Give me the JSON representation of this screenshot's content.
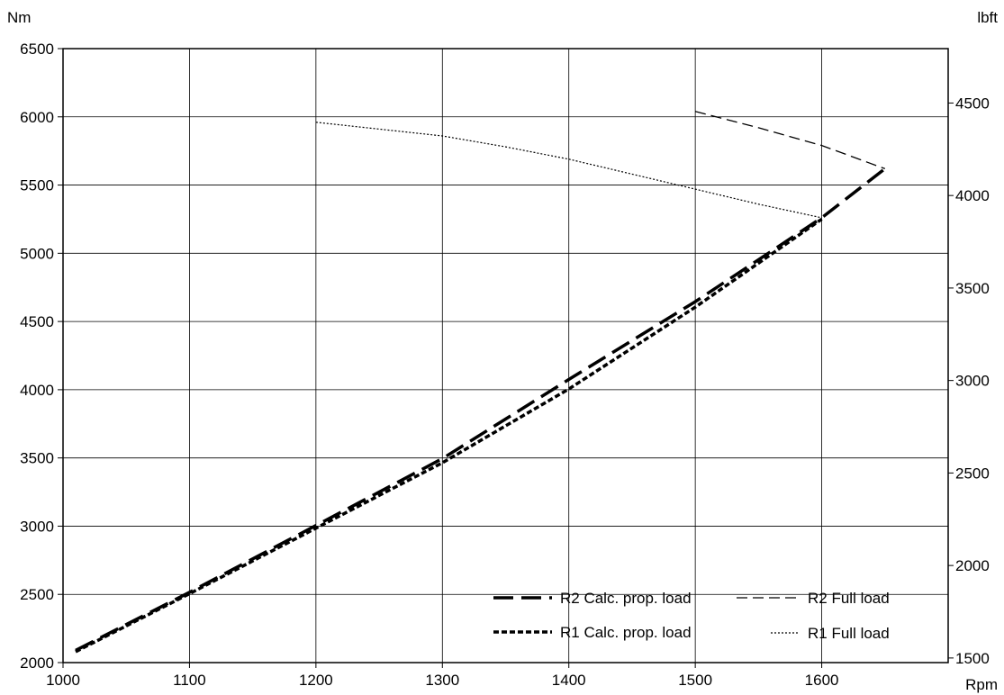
{
  "chart_data": {
    "type": "line",
    "xlabel": "Rpm",
    "ylabel_left": "Nm",
    "ylabel_right": "lbft",
    "xlim": [
      1000,
      1700
    ],
    "ylim_left": [
      2000,
      6500
    ],
    "ylim_right": [
      1475.1,
      4794.1
    ],
    "grid": true,
    "legend_position": "bottom-right",
    "x_ticks": [
      1000,
      1100,
      1200,
      1300,
      1400,
      1500,
      1600
    ],
    "y_ticks_left": [
      2000,
      2500,
      3000,
      3500,
      4000,
      4500,
      5000,
      5500,
      6000,
      6500
    ],
    "y_ticks_right": [
      1500,
      2000,
      2500,
      3000,
      3500,
      4000,
      4500
    ],
    "series": [
      {
        "name": "R2 Calc. prop. load",
        "style": "long-dash-thick",
        "x": [
          1010,
          1100,
          1200,
          1300,
          1400,
          1500,
          1600,
          1650
        ],
        "y": [
          2090,
          2515,
          3005,
          3495,
          4075,
          4645,
          5260,
          5620
        ]
      },
      {
        "name": "R2 Full load",
        "style": "dash-thin",
        "x": [
          1500,
          1550,
          1600,
          1650
        ],
        "y": [
          6040,
          5920,
          5790,
          5620
        ]
      },
      {
        "name": "R1 Calc. prop. load",
        "style": "short-dash-thick",
        "x": [
          1010,
          1100,
          1200,
          1300,
          1400,
          1500,
          1600
        ],
        "y": [
          2080,
          2505,
          2985,
          3465,
          4005,
          4605,
          5250
        ]
      },
      {
        "name": "R1 Full load",
        "style": "dot-thin",
        "x": [
          1200,
          1250,
          1300,
          1350,
          1400,
          1450,
          1500,
          1550,
          1600
        ],
        "y": [
          5960,
          5910,
          5860,
          5780,
          5690,
          5580,
          5470,
          5360,
          5260
        ]
      }
    ]
  }
}
